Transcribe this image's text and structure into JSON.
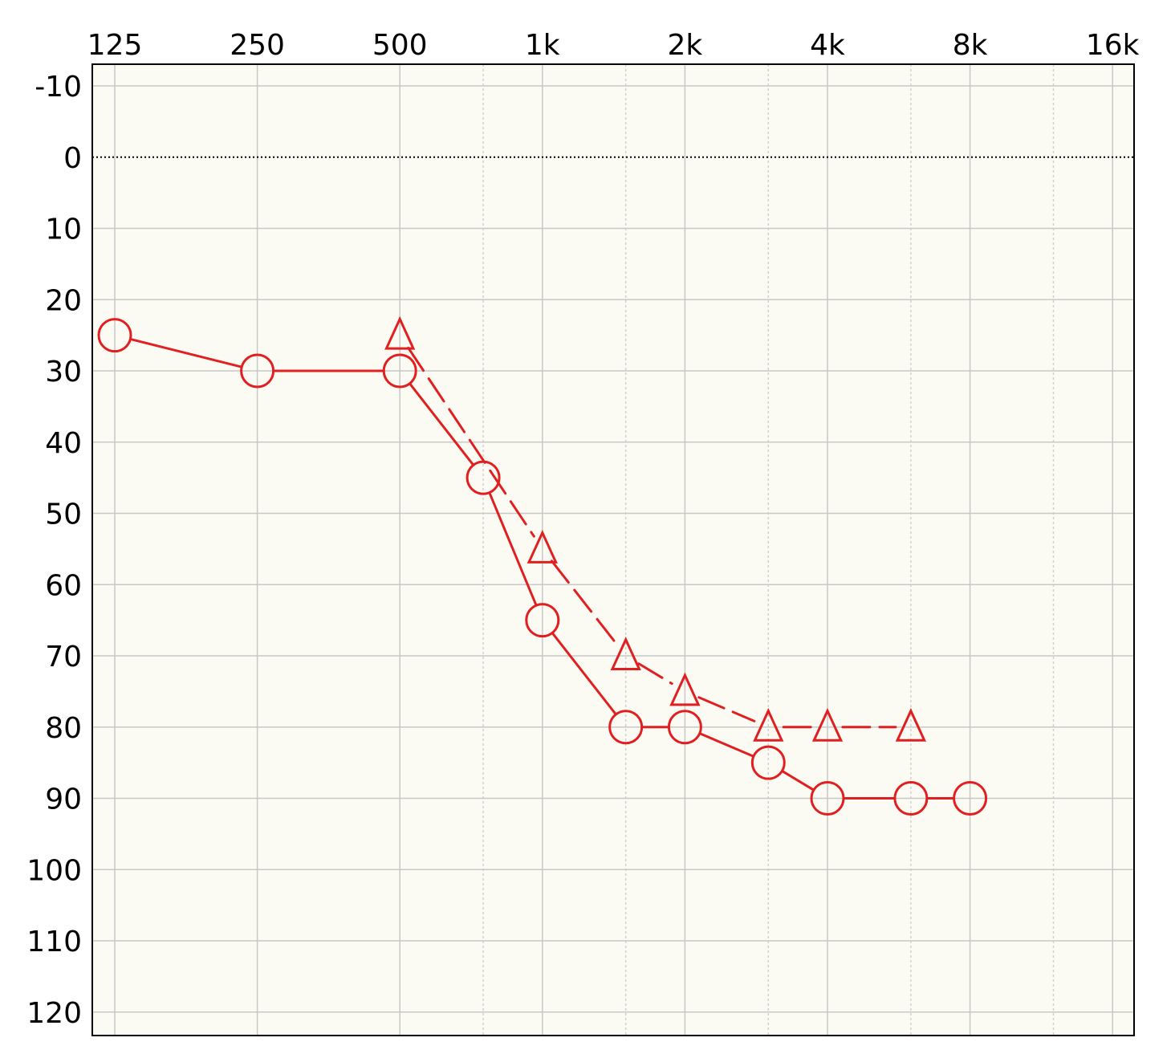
{
  "chart_data": {
    "type": "line",
    "title": "",
    "xlabel": "",
    "ylabel": "",
    "x_scale": "log2",
    "y_inverted": true,
    "xlim": [
      125,
      16000
    ],
    "ylim": [
      -10,
      120
    ],
    "x_ticks": [
      {
        "value": 125,
        "label": "125"
      },
      {
        "value": 250,
        "label": "250"
      },
      {
        "value": 500,
        "label": "500"
      },
      {
        "value": 1000,
        "label": "1k"
      },
      {
        "value": 2000,
        "label": "2k"
      },
      {
        "value": 4000,
        "label": "4k"
      },
      {
        "value": 8000,
        "label": "8k"
      },
      {
        "value": 16000,
        "label": "16k"
      }
    ],
    "x_minor_gridlines": [
      750,
      1500,
      3000,
      6000,
      12000
    ],
    "y_ticks": [
      -10,
      0,
      10,
      20,
      30,
      40,
      50,
      60,
      70,
      80,
      90,
      100,
      110,
      120
    ],
    "reference_line": {
      "y": 0,
      "style": "dotted"
    },
    "grid": true,
    "colors": {
      "series": "#e02020",
      "plot_background": "#fbfbf4",
      "grid_major": "#c8c8c8",
      "grid_minor": "#d0d0d0",
      "frame": "#000000",
      "text": "#000000"
    },
    "series": [
      {
        "marker": "circle",
        "line_style": "solid",
        "x": [
          125,
          250,
          500,
          750,
          1000,
          1500,
          2000,
          3000,
          4000,
          6000,
          8000
        ],
        "y": [
          25,
          30,
          30,
          45,
          65,
          80,
          80,
          85,
          90,
          90,
          90
        ]
      },
      {
        "marker": "triangle",
        "line_style": "dashed",
        "x": [
          500,
          1000,
          1500,
          2000,
          3000,
          4000,
          6000
        ],
        "y": [
          25,
          55,
          70,
          75,
          80,
          80,
          80
        ]
      }
    ]
  }
}
